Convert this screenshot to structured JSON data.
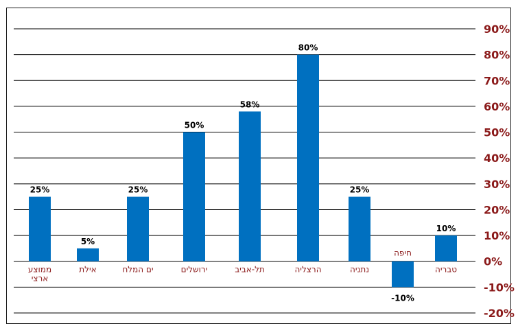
{
  "chart_data": {
    "type": "bar",
    "title": "",
    "xlabel": "",
    "ylabel": "",
    "categories": [
      "ממוצע ארצי",
      "אילת",
      "ים המלח",
      "ירושלים",
      "תל-אביב",
      "הרצליה",
      "נתניה",
      "חיפה",
      "טבריה"
    ],
    "category_lines": [
      [
        "ממוצע",
        "ארצי"
      ],
      [
        "אילת"
      ],
      [
        "ים המלח"
      ],
      [
        "ירושלים"
      ],
      [
        "תל-אביב"
      ],
      [
        "הרצליה"
      ],
      [
        "נתניה"
      ],
      [
        "חיפה"
      ],
      [
        "טבריה"
      ]
    ],
    "values": [
      25,
      5,
      25,
      50,
      58,
      80,
      25,
      -10,
      10
    ],
    "value_labels": [
      "25%",
      "5%",
      "25%",
      "50%",
      "58%",
      "80%",
      "25%",
      "-10%",
      "10%"
    ],
    "ylim": [
      -20,
      90
    ],
    "yticks": [
      90,
      80,
      70,
      60,
      50,
      40,
      30,
      20,
      10,
      0,
      -10,
      -20
    ],
    "ytick_labels": [
      "90%",
      "80%",
      "70%",
      "60%",
      "50%",
      "40%",
      "30%",
      "20%",
      "10%",
      "0%",
      "-10%",
      "-20%"
    ],
    "grid": true,
    "y_axis_side": "right",
    "legend": "none",
    "colors": {
      "bar": "#0070C0",
      "axis_text": "#8B1A1A",
      "data_label": "#000000",
      "grid": "#000000"
    }
  }
}
